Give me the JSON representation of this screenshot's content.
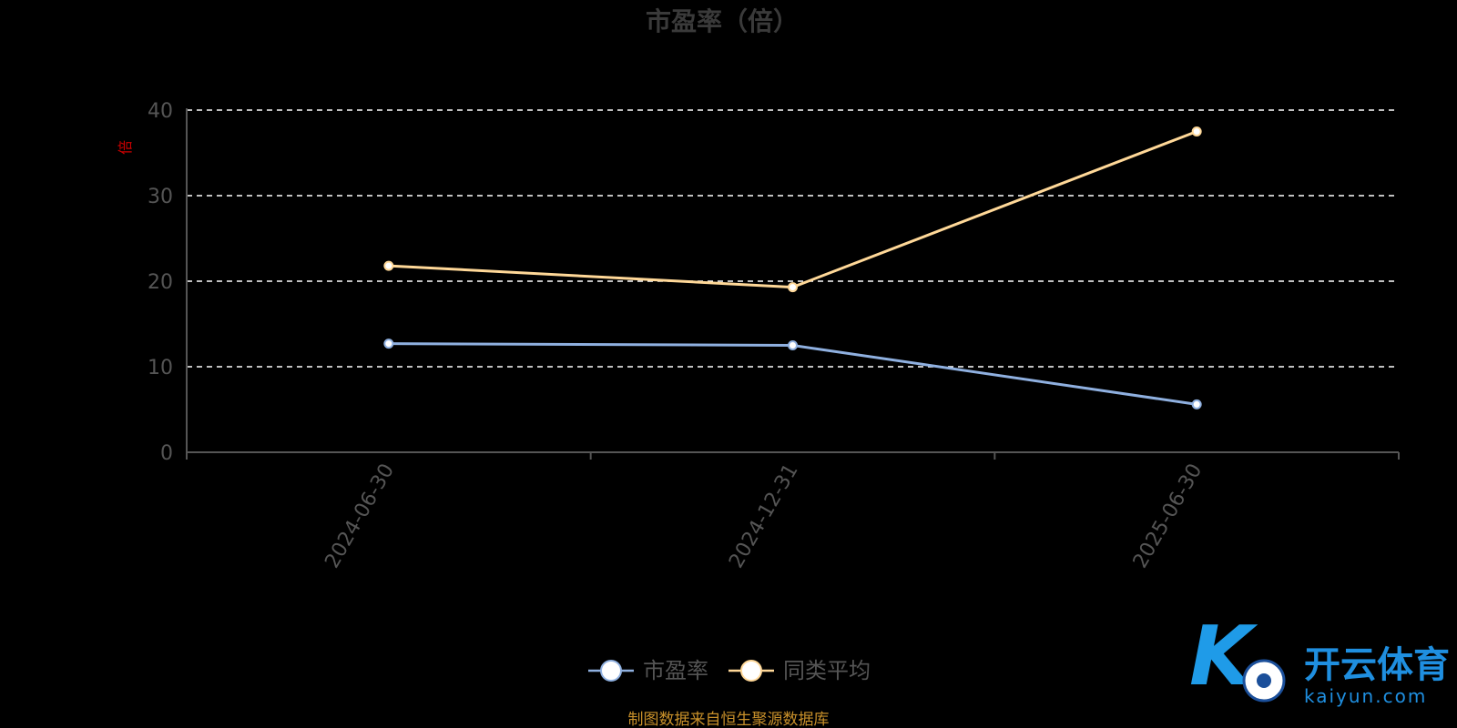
{
  "chart_data": {
    "type": "line",
    "title": "市盈率（倍）",
    "y_unit_label": "倍",
    "categories": [
      "2024-06-30",
      "2024-12-31",
      "2025-06-30"
    ],
    "ylim": [
      0,
      40
    ],
    "yticks": [
      0,
      10,
      20,
      30,
      40
    ],
    "grid": true,
    "legend_position": "bottom-center",
    "series": [
      {
        "name": "市盈率",
        "values": [
          12.7,
          12.5,
          5.6
        ],
        "color": "#8fb0e0"
      },
      {
        "name": "同类平均",
        "values": [
          21.8,
          19.3,
          37.5
        ],
        "color": "#ffd898"
      }
    ]
  },
  "footer": {
    "source": "制图数据来自恒生聚源数据库"
  },
  "watermark": {
    "cn": "开云体育",
    "en": "kaiyun.com",
    "logo_letter": "K"
  },
  "colors": {
    "background": "#000000",
    "grid": "#ffffff",
    "axis": "#555555"
  }
}
